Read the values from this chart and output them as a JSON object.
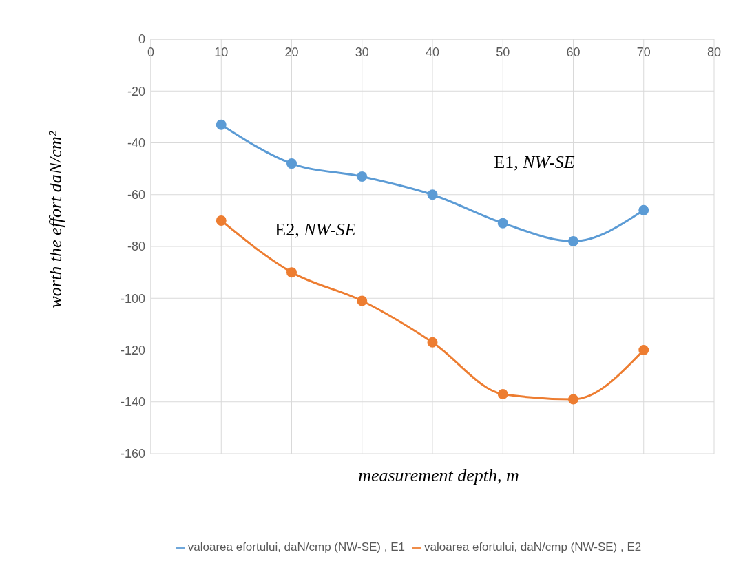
{
  "chart_data": {
    "type": "line",
    "xlabel": "measurement depth, m",
    "ylabel": "worth the effort daN/cm²",
    "x": [
      10,
      20,
      30,
      40,
      50,
      60,
      70
    ],
    "series": [
      {
        "name": "valoarea efortului, daN/cmp (NW-SE) , E1",
        "color": "#5b9bd5",
        "values": [
          -33,
          -48,
          -53,
          -60,
          -71,
          -78,
          -66
        ]
      },
      {
        "name": "valoarea efortului, daN/cmp (NW-SE) , E2",
        "color": "#ed7d31",
        "values": [
          -70,
          -90,
          -101,
          -117,
          -137,
          -139,
          -120
        ]
      }
    ],
    "annotations": [
      "E1, NW-SE",
      "E2, NW-SE"
    ],
    "xlim": [
      0,
      80
    ],
    "xticks": [
      0,
      10,
      20,
      30,
      40,
      50,
      60,
      70,
      80
    ],
    "ylim": [
      -160,
      0
    ],
    "yticks": [
      -160,
      -140,
      -120,
      -100,
      -80,
      -60,
      -40,
      -20,
      0
    ],
    "grid": true,
    "legend": "bottom",
    "marker": "circle",
    "line_style": "solid"
  }
}
